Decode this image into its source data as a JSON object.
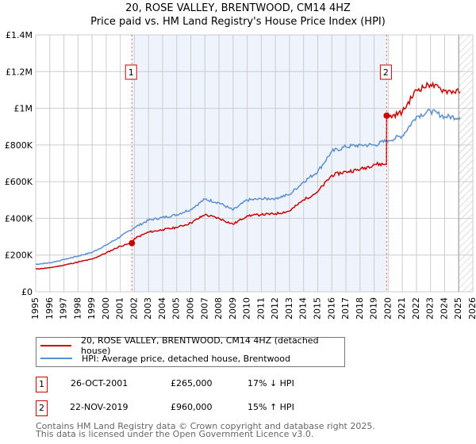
{
  "chart_data": {
    "type": "line",
    "title": "20, ROSE VALLEY, BRENTWOOD, CM14 4HZ",
    "subtitle": "Price paid vs. HM Land Registry's House Price Index (HPI)",
    "xlim": [
      1995,
      2026
    ],
    "ylim": [
      0,
      1400000
    ],
    "x_ticks": [
      "1995",
      "1996",
      "1997",
      "1998",
      "1999",
      "2000",
      "2001",
      "2002",
      "2003",
      "2004",
      "2005",
      "2006",
      "2007",
      "2008",
      "2009",
      "2010",
      "2011",
      "2012",
      "2013",
      "2014",
      "2015",
      "2016",
      "2017",
      "2018",
      "2019",
      "2020",
      "2021",
      "2022",
      "2023",
      "2024",
      "2025",
      "2026"
    ],
    "y_ticks": [
      {
        "v": 0,
        "label": "£0"
      },
      {
        "v": 200000,
        "label": "£200K"
      },
      {
        "v": 400000,
        "label": "£400K"
      },
      {
        "v": 600000,
        "label": "£600K"
      },
      {
        "v": 800000,
        "label": "£800K"
      },
      {
        "v": 1000000,
        "label": "£1M"
      },
      {
        "v": 1200000,
        "label": "£1.2M"
      },
      {
        "v": 1400000,
        "label": "£1.4M"
      }
    ],
    "grid": true,
    "colors": {
      "property": "#cc0000",
      "hpi": "#5b8fd0",
      "shade": "#eef3fc"
    },
    "hpi_series": {
      "x": [
        1995,
        1996,
        1997,
        1998,
        1999,
        2000,
        2001,
        2002,
        2003,
        2004,
        2005,
        2006,
        2007,
        2008,
        2009,
        2010,
        2011,
        2012,
        2013,
        2014,
        2015,
        2016,
        2017,
        2018,
        2019,
        2020,
        2021,
        2022,
        2023,
        2024,
        2025.1
      ],
      "y": [
        150000,
        158000,
        175000,
        195000,
        215000,
        255000,
        300000,
        350000,
        390000,
        405000,
        420000,
        450000,
        505000,
        485000,
        445000,
        500000,
        505000,
        510000,
        530000,
        600000,
        655000,
        765000,
        790000,
        800000,
        800000,
        825000,
        850000,
        955000,
        985000,
        955000,
        950000
      ]
    },
    "property_series": {
      "x": [
        1995,
        1996,
        1997,
        1998,
        1999,
        2000,
        2001,
        2001.82,
        2002,
        2003,
        2004,
        2005,
        2006,
        2007,
        2008,
        2009,
        2010,
        2011,
        2012,
        2013,
        2014,
        2015,
        2016,
        2017,
        2018,
        2019,
        2019.88,
        2019.89,
        2020,
        2021,
        2022,
        2023,
        2024,
        2025.1
      ],
      "y": [
        124000,
        131000,
        145000,
        162000,
        178000,
        212000,
        249000,
        265000,
        290000,
        325000,
        338000,
        350000,
        375000,
        420000,
        400000,
        368000,
        415000,
        420000,
        425000,
        440000,
        500000,
        545000,
        635000,
        655000,
        665000,
        695000,
        695000,
        960000,
        950000,
        980000,
        1100000,
        1130000,
        1095000,
        1090000
      ]
    },
    "sales": [
      {
        "label": "1",
        "x": 2001.82,
        "y": 265000
      },
      {
        "label": "2",
        "x": 2019.89,
        "y": 960000
      }
    ],
    "forecast_from": 2025.0
  },
  "legend": {
    "property": "20, ROSE VALLEY, BRENTWOOD, CM14 4HZ (detached house)",
    "hpi": "HPI: Average price, detached house, Brentwood"
  },
  "transactions": [
    {
      "num": "1",
      "date": "26-OCT-2001",
      "price": "£265,000",
      "change": "17% ↓ HPI"
    },
    {
      "num": "2",
      "date": "22-NOV-2019",
      "price": "£960,000",
      "change": "15% ↑ HPI"
    }
  ],
  "footer": {
    "line1": "Contains HM Land Registry data © Crown copyright and database right 2025.",
    "line2": "This data is licensed under the Open Government Licence v3.0."
  }
}
